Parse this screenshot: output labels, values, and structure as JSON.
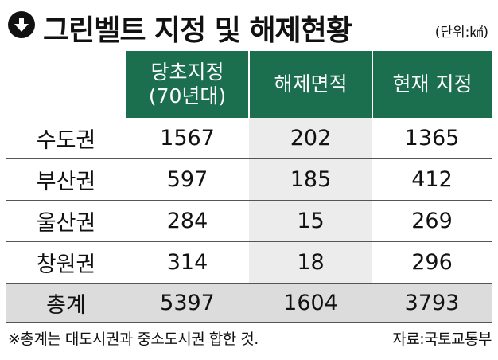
{
  "title": "그린벨트 지정 및 해제현황",
  "title_icon": "down-arrow-circle-icon",
  "unit": "(단위:㎢)",
  "chart_data": {
    "type": "table",
    "title": "그린벨트 지정 및 해제현황",
    "unit": "(단위:㎢)",
    "columns": [
      "당초지정\n(70년대)",
      "해제면적",
      "현재 지정"
    ],
    "rows": [
      {
        "label": "수도권",
        "values": [
          1567,
          202,
          1365
        ]
      },
      {
        "label": "부산권",
        "values": [
          597,
          185,
          412
        ]
      },
      {
        "label": "울산권",
        "values": [
          284,
          15,
          269
        ]
      },
      {
        "label": "창원권",
        "values": [
          314,
          18,
          296
        ]
      },
      {
        "label": "총계",
        "values": [
          5397,
          1604,
          3793
        ]
      }
    ]
  },
  "header": {
    "col1_line1": "당초지정",
    "col1_line2": "(70년대)",
    "col2": "해제면적",
    "col3": "현재 지정"
  },
  "footnote": "※총계는 대도시권과 중소도시권 합한 것.",
  "source": "자료:국토교통부",
  "colors": {
    "header_bg": "#1b6f4e",
    "header_text": "#ffffff",
    "shaded_column": "#ececec",
    "total_row_bg": "#dcdcdc"
  }
}
